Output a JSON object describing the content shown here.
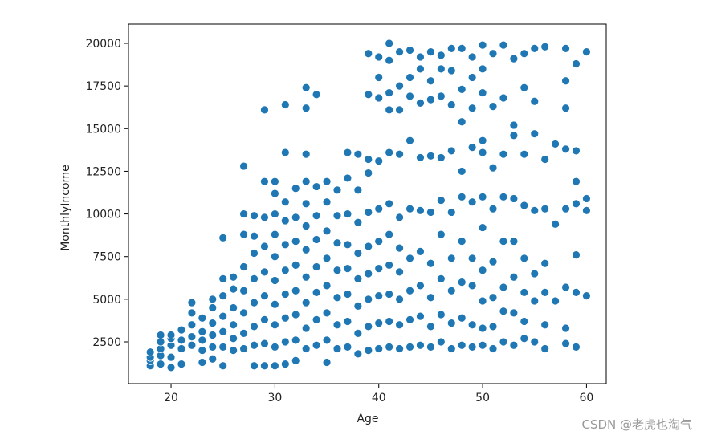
{
  "chart_data": {
    "type": "scatter",
    "x_label": "Age",
    "y_label": "MonthlyIncome",
    "color": "#1f77b4",
    "watermark": "CSDN @老虎也淘气",
    "xlim": [
      15.9,
      61.9
    ],
    "xticks": [
      20,
      30,
      40,
      50,
      60
    ],
    "ylim": [
      54,
      21129
    ],
    "yticks": [
      2500,
      5000,
      7500,
      10000,
      12500,
      15000,
      17500,
      20000
    ],
    "x": [
      18,
      18,
      18,
      18,
      19,
      19,
      19,
      19,
      19,
      20,
      20,
      20,
      20,
      20,
      21,
      21,
      21,
      21,
      22,
      22,
      22,
      22,
      22,
      23,
      23,
      23,
      23,
      23,
      24,
      24,
      24,
      24,
      24,
      24,
      25,
      25,
      25,
      25,
      25,
      25,
      25,
      26,
      26,
      26,
      26,
      26,
      26,
      27,
      27,
      27,
      27,
      27,
      27,
      27,
      27,
      28,
      28,
      28,
      28,
      28,
      28,
      28,
      28,
      29,
      29,
      29,
      29,
      29,
      29,
      29,
      29,
      29,
      30,
      30,
      30,
      30,
      30,
      30,
      30,
      30,
      30,
      30,
      31,
      31,
      31,
      31,
      31,
      31,
      31,
      31,
      31,
      31,
      32,
      32,
      32,
      32,
      32,
      32,
      32,
      32,
      33,
      33,
      33,
      33,
      33,
      33,
      33,
      33,
      33,
      33,
      33,
      34,
      34,
      34,
      34,
      34,
      34,
      34,
      34,
      35,
      35,
      35,
      35,
      35,
      35,
      35,
      35,
      36,
      36,
      36,
      36,
      36,
      36,
      36,
      37,
      37,
      37,
      37,
      37,
      37,
      37,
      37,
      38,
      38,
      38,
      38,
      38,
      38,
      38,
      38,
      39,
      39,
      39,
      39,
      39,
      39,
      39,
      39,
      39,
      39,
      40,
      40,
      40,
      40,
      40,
      40,
      40,
      40,
      40,
      40,
      41,
      41,
      41,
      41,
      41,
      41,
      41,
      41,
      41,
      41,
      41,
      42,
      42,
      42,
      42,
      42,
      42,
      42,
      42,
      42,
      42,
      43,
      43,
      43,
      43,
      43,
      43,
      43,
      43,
      43,
      44,
      44,
      44,
      44,
      44,
      44,
      44,
      44,
      44,
      45,
      45,
      45,
      45,
      45,
      45,
      45,
      45,
      45,
      46,
      46,
      46,
      46,
      46,
      46,
      46,
      46,
      46,
      47,
      47,
      47,
      47,
      47,
      47,
      47,
      47,
      47,
      48,
      48,
      48,
      48,
      48,
      48,
      48,
      48,
      48,
      49,
      49,
      49,
      49,
      49,
      49,
      49,
      49,
      49,
      50,
      50,
      50,
      50,
      50,
      50,
      50,
      50,
      50,
      50,
      50,
      51,
      51,
      51,
      51,
      51,
      51,
      51,
      51,
      52,
      52,
      52,
      52,
      52,
      52,
      52,
      52,
      53,
      53,
      53,
      53,
      53,
      53,
      53,
      53,
      54,
      54,
      54,
      54,
      54,
      54,
      54,
      54,
      55,
      55,
      55,
      55,
      55,
      55,
      55,
      56,
      56,
      56,
      56,
      56,
      56,
      56,
      57,
      57,
      57,
      58,
      58,
      58,
      58,
      58,
      58,
      58,
      58,
      59,
      59,
      59,
      59,
      59,
      59,
      59,
      60,
      60,
      60,
      60
    ],
    "values": [
      1100,
      1400,
      1600,
      1900,
      1200,
      1700,
      2100,
      2500,
      2900,
      1000,
      1600,
      2300,
      2700,
      2900,
      1200,
      2100,
      2600,
      3200,
      2300,
      2800,
      3500,
      4200,
      4800,
      1300,
      2000,
      2600,
      3100,
      3900,
      1500,
      2200,
      2900,
      3600,
      4500,
      5000,
      1100,
      2200,
      3100,
      4000,
      5200,
      6200,
      8600,
      2000,
      2700,
      3500,
      4500,
      5600,
      6300,
      2100,
      3000,
      4200,
      5500,
      6900,
      8800,
      10000,
      12800,
      1100,
      2300,
      3400,
      4800,
      6200,
      7700,
      8700,
      9900,
      1100,
      2400,
      3800,
      5200,
      6600,
      8100,
      9800,
      11900,
      16100,
      1100,
      2200,
      3500,
      4700,
      6100,
      7500,
      8800,
      10000,
      11200,
      11900,
      1200,
      2500,
      3900,
      5300,
      6700,
      8200,
      9600,
      10700,
      13600,
      16400,
      1400,
      2600,
      4100,
      5500,
      7000,
      8400,
      9800,
      11500,
      2100,
      3300,
      4800,
      6300,
      7900,
      9300,
      10600,
      11900,
      13500,
      16200,
      17400,
      2300,
      3800,
      5400,
      6900,
      8500,
      9900,
      11600,
      17000,
      1300,
      2600,
      4200,
      5800,
      7400,
      9000,
      10700,
      11900,
      2100,
      3500,
      5100,
      6700,
      8300,
      9900,
      11400,
      2200,
      3700,
      5300,
      6800,
      8200,
      10000,
      12100,
      13600,
      1800,
      3000,
      4600,
      6200,
      7700,
      9500,
      11400,
      13500,
      2000,
      3400,
      5000,
      6500,
      8100,
      10100,
      12400,
      13200,
      17000,
      19400,
      2100,
      3600,
      5200,
      6800,
      8400,
      10300,
      13100,
      16800,
      18000,
      19200,
      2200,
      3700,
      5300,
      7000,
      8800,
      10600,
      13600,
      16100,
      17100,
      19000,
      20000,
      2100,
      3500,
      5000,
      6600,
      8000,
      9800,
      13500,
      16100,
      17500,
      19500,
      2200,
      3800,
      5500,
      7400,
      10300,
      14300,
      16900,
      18000,
      19600,
      2300,
      4000,
      5800,
      7800,
      10200,
      13300,
      16500,
      18500,
      19200,
      2200,
      3400,
      5100,
      7100,
      10100,
      13400,
      16700,
      17800,
      19500,
      2500,
      4100,
      6200,
      8800,
      10800,
      13300,
      16900,
      18500,
      19300,
      2100,
      3600,
      5500,
      7400,
      10100,
      13700,
      16400,
      18400,
      19700,
      2300,
      3900,
      6000,
      8400,
      11000,
      12500,
      15400,
      17300,
      19700,
      2200,
      3500,
      5800,
      7400,
      10700,
      13900,
      16200,
      18000,
      19200,
      2300,
      3300,
      4900,
      6700,
      9200,
      11000,
      13600,
      14300,
      17100,
      18500,
      19900,
      2100,
      3400,
      5100,
      7200,
      10300,
      12700,
      16300,
      19400,
      2500,
      4300,
      5700,
      8400,
      11000,
      13500,
      16800,
      19900,
      2300,
      4200,
      6300,
      8400,
      10900,
      14600,
      15200,
      19100,
      2700,
      3700,
      5400,
      7400,
      10500,
      13500,
      17400,
      19400,
      2500,
      4900,
      6500,
      10200,
      14700,
      16600,
      19700,
      2100,
      3500,
      5400,
      7100,
      10300,
      13200,
      19800,
      4900,
      9400,
      14100,
      2400,
      3300,
      5700,
      10300,
      13800,
      16200,
      17800,
      19700,
      2200,
      5400,
      7600,
      10600,
      11900,
      13700,
      18800,
      5200,
      10200,
      10900,
      19500
    ]
  }
}
